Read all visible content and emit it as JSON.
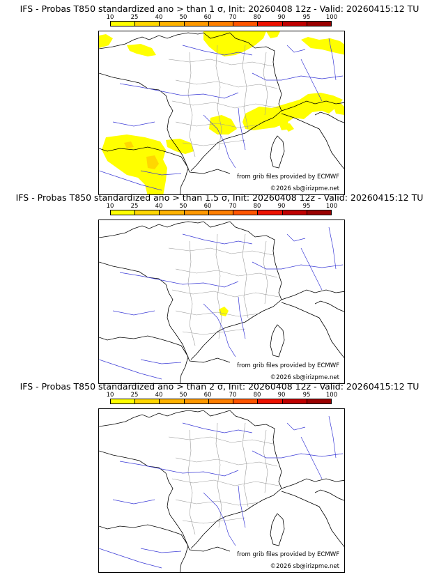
{
  "colorbar": {
    "ticks": [
      "10",
      "25",
      "40",
      "50",
      "60",
      "70",
      "80",
      "90",
      "95",
      "100"
    ],
    "colors": [
      "#ffff00",
      "#ffd700",
      "#ffb300",
      "#ff9900",
      "#ff7f00",
      "#ff5500",
      "#ee1100",
      "#c00000",
      "#9a0000"
    ]
  },
  "panels": [
    {
      "title": "IFS - Probas T850  standardized ano > than 1 σ, Init: 20260408 12z - Valid: 20260415:12 TU",
      "credit": "from grib files provided by ECMWF",
      "copyright": "©2026 sb@irizpme.net",
      "highlight_level": "10-25"
    },
    {
      "title": "IFS - Probas T850  standardized ano > than 1.5 σ, Init: 20260408 12z - Valid: 20260415:12 TU",
      "credit": "from grib files provided by ECMWF",
      "copyright": "©2026 sb@irizpme.net",
      "highlight_level": "10-25"
    },
    {
      "title": "IFS - Probas T850  standardized ano > than 2 σ, Init: 20260408 12z - Valid: 20260415:12 TU",
      "credit": "from grib files provided by ECMWF",
      "copyright": "©2026 sb@irizpme.net",
      "highlight_level": "none"
    }
  ]
}
